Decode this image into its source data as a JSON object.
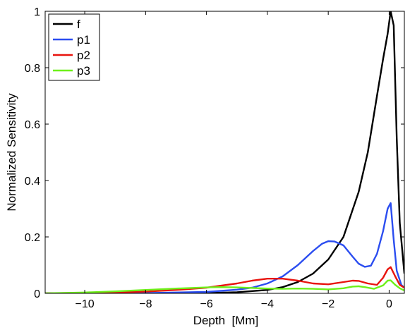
{
  "chart_data": {
    "type": "line",
    "title": "",
    "xlabel": "Depth  [Mm]",
    "ylabel": "Normalized Sensitivity",
    "xlim": [
      -11.3,
      0.5
    ],
    "ylim": [
      0,
      1
    ],
    "xticks": [
      -10,
      -8,
      -6,
      -4,
      -2,
      0
    ],
    "xtick_labels": [
      "−10",
      "−8",
      "−6",
      "−4",
      "−2",
      "0"
    ],
    "yticks": [
      0,
      0.2,
      0.4,
      0.6,
      0.8,
      1
    ],
    "ytick_labels": [
      "0",
      "0.2",
      "0.4",
      "0.6",
      "0.8",
      "1"
    ],
    "grid": false,
    "legend_position": "top-left",
    "series": [
      {
        "name": "f",
        "color": "#000000",
        "x": [
          -11.3,
          -8,
          -6,
          -5,
          -4,
          -3.5,
          -3,
          -2.5,
          -2,
          -1.5,
          -1,
          -0.7,
          -0.4,
          -0.2,
          -0.05,
          0.05,
          0.15,
          0.25,
          0.35,
          0.5
        ],
        "y": [
          0,
          0,
          0.001,
          0.004,
          0.012,
          0.022,
          0.04,
          0.07,
          0.12,
          0.2,
          0.36,
          0.5,
          0.7,
          0.83,
          0.92,
          1.0,
          0.95,
          0.55,
          0.25,
          0.07
        ]
      },
      {
        "name": "p1",
        "color": "#2b4df0",
        "x": [
          -11.3,
          -8,
          -6,
          -5,
          -4.5,
          -4,
          -3.5,
          -3,
          -2.5,
          -2.2,
          -2,
          -1.8,
          -1.5,
          -1.2,
          -1,
          -0.8,
          -0.6,
          -0.4,
          -0.2,
          -0.05,
          0.05,
          0.15,
          0.25,
          0.4,
          0.5
        ],
        "y": [
          0,
          0.001,
          0.005,
          0.013,
          0.02,
          0.035,
          0.06,
          0.1,
          0.15,
          0.176,
          0.185,
          0.184,
          0.17,
          0.13,
          0.105,
          0.094,
          0.098,
          0.14,
          0.22,
          0.3,
          0.32,
          0.19,
          0.08,
          0.03,
          0.02
        ]
      },
      {
        "name": "p2",
        "color": "#e8140e",
        "x": [
          -11.3,
          -9,
          -8,
          -7,
          -6,
          -5,
          -4.5,
          -4,
          -3.5,
          -3,
          -2.5,
          -2,
          -1.5,
          -1.2,
          -1,
          -0.7,
          -0.4,
          -0.2,
          -0.05,
          0.05,
          0.2,
          0.35,
          0.5
        ],
        "y": [
          0,
          0.003,
          0.006,
          0.012,
          0.02,
          0.035,
          0.045,
          0.052,
          0.052,
          0.045,
          0.035,
          0.032,
          0.04,
          0.045,
          0.044,
          0.035,
          0.03,
          0.055,
          0.085,
          0.093,
          0.06,
          0.03,
          0.02
        ]
      },
      {
        "name": "p3",
        "color": "#6ef01a",
        "x": [
          -11.3,
          -10,
          -9,
          -8,
          -7,
          -6,
          -5.5,
          -5,
          -4.5,
          -4,
          -3.5,
          -3,
          -2.5,
          -2,
          -1.5,
          -1.2,
          -1,
          -0.8,
          -0.5,
          -0.2,
          -0.05,
          0.05,
          0.2,
          0.35,
          0.5
        ],
        "y": [
          0,
          0.003,
          0.007,
          0.012,
          0.017,
          0.021,
          0.022,
          0.021,
          0.019,
          0.017,
          0.016,
          0.017,
          0.016,
          0.014,
          0.018,
          0.024,
          0.025,
          0.022,
          0.016,
          0.028,
          0.045,
          0.046,
          0.03,
          0.018,
          0.01
        ]
      }
    ]
  }
}
